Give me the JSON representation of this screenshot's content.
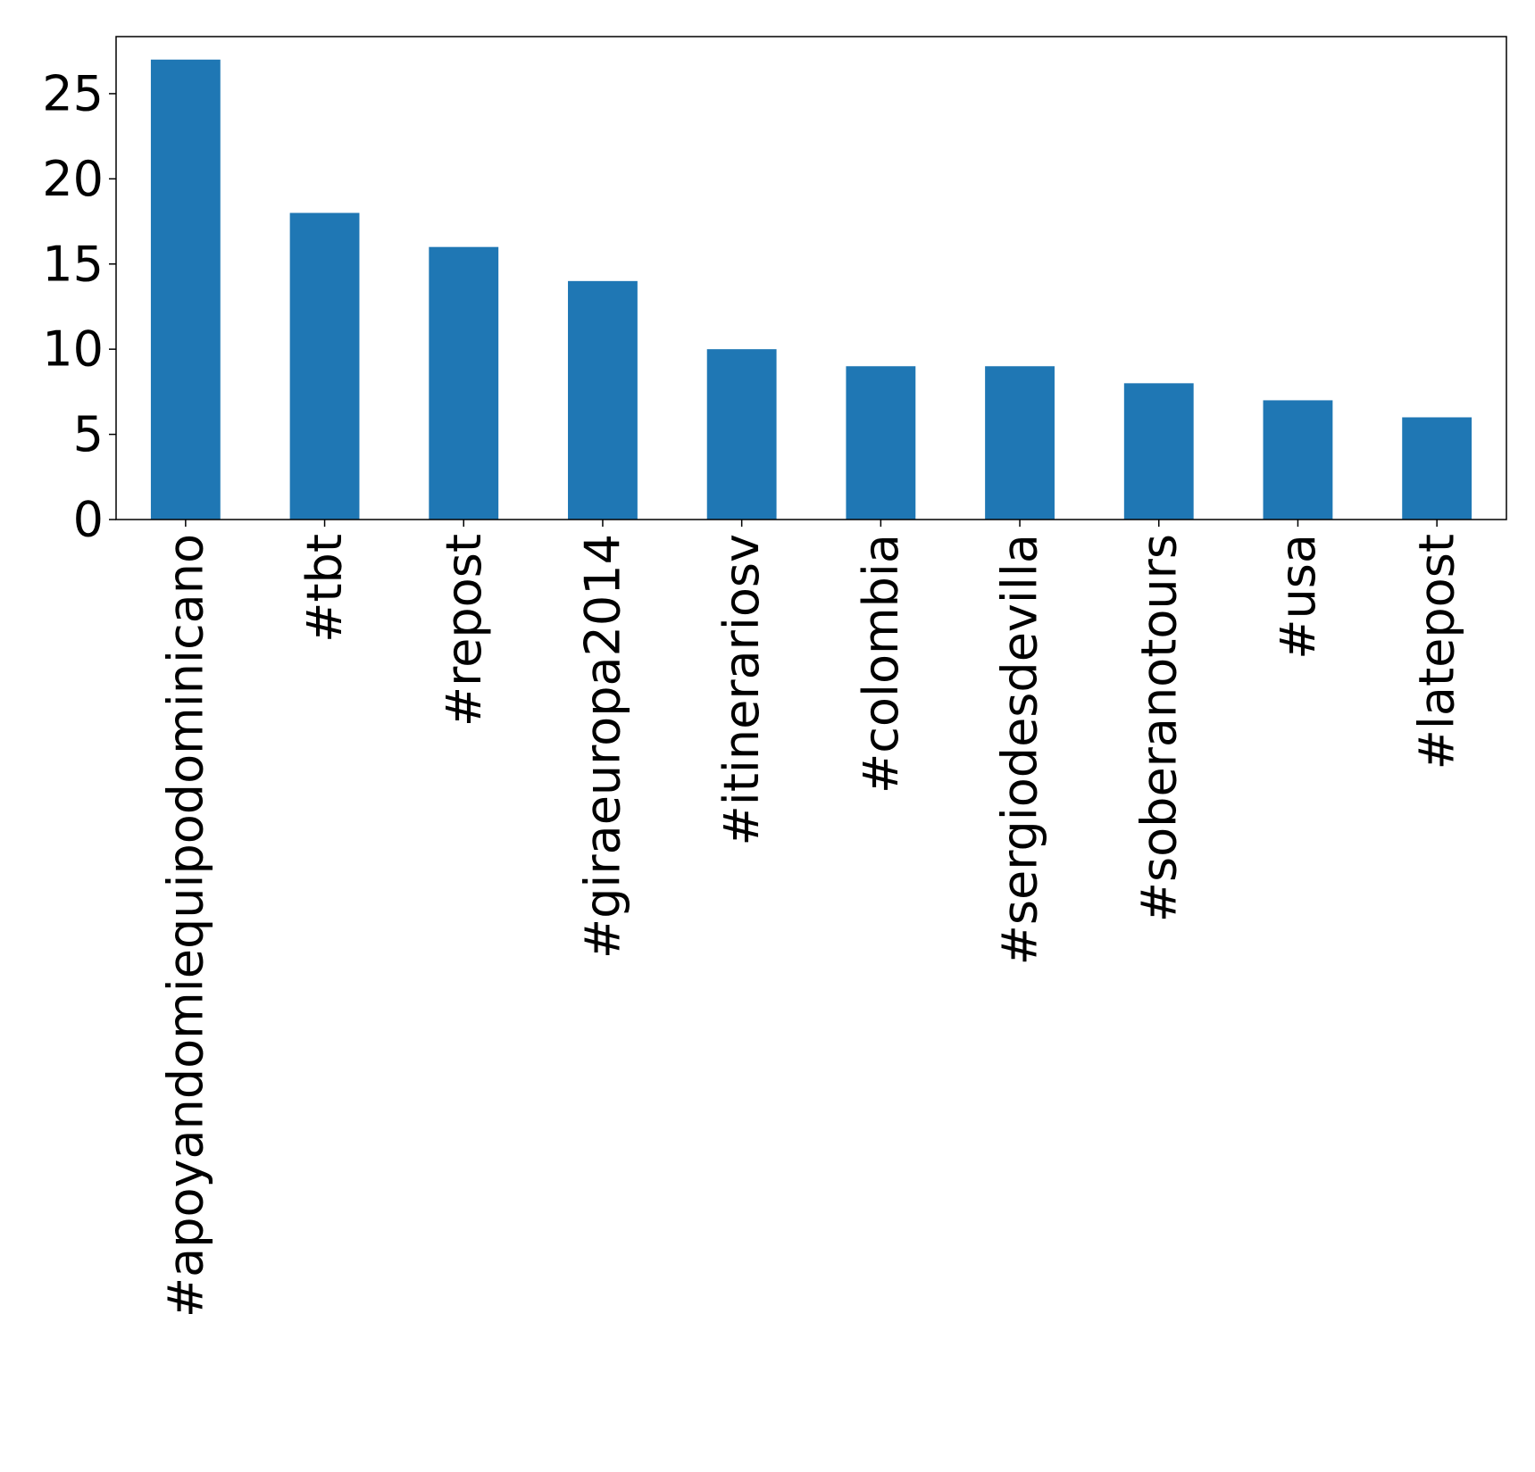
{
  "chart_data": {
    "type": "bar",
    "title": "",
    "xlabel": "",
    "ylabel": "",
    "categories": [
      "#apoyandomiequipodominicano",
      "#tbt",
      "#repost",
      "#giraeuropa2014",
      "#itinerariosv",
      "#colombia",
      "#sergiodesdevilla",
      "#soberanotours",
      "#usa",
      "#latepost"
    ],
    "values": [
      27,
      18,
      16,
      14,
      10,
      9,
      9,
      8,
      7,
      6
    ],
    "ylim": [
      0,
      28.35
    ],
    "yticks": [
      0,
      5,
      10,
      15,
      20,
      25
    ],
    "bar_color": "#1f77b4",
    "grid": false,
    "legend": "none"
  }
}
